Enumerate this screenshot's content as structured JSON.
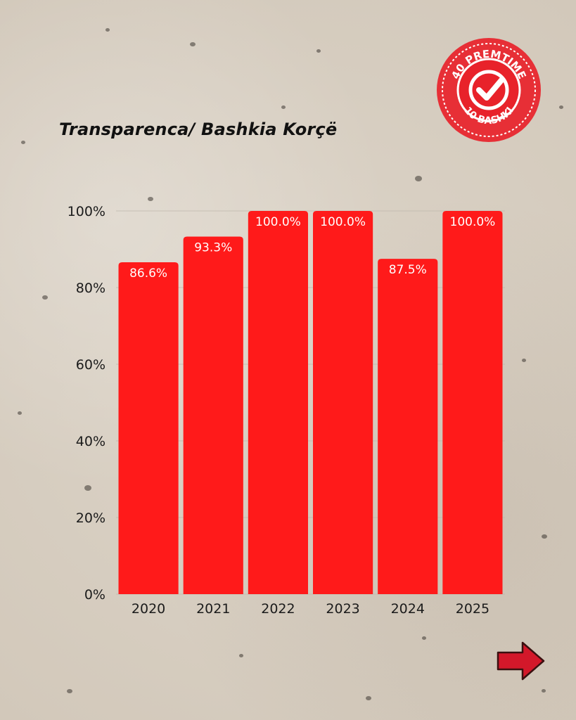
{
  "title": "Transparenca/ Bashkia Korçë",
  "logo": {
    "top_text": "40 PREMTIME",
    "bottom_text": "10 BASHKI",
    "icon": "checkmark-icon"
  },
  "navigation": {
    "next_icon": "arrow-right-icon"
  },
  "colors": {
    "bar": "#ff1a1a",
    "label": "#ffffff",
    "grid": "#bdb6ab",
    "arrow": "#d3182a"
  },
  "chart_data": {
    "type": "bar",
    "title": "Transparenca/ Bashkia Korçë",
    "categories": [
      "2020",
      "2021",
      "2022",
      "2023",
      "2024",
      "2025"
    ],
    "values": [
      86.6,
      93.3,
      100.0,
      100.0,
      87.5,
      100.0
    ],
    "data_labels": [
      "86.6%",
      "93.3%",
      "100.0%",
      "100.0%",
      "87.5%",
      "100.0%"
    ],
    "yticks": [
      "0%",
      "20%",
      "40%",
      "60%",
      "80%",
      "100%"
    ],
    "ylim": [
      0,
      100
    ],
    "xlabel": "",
    "ylabel": "",
    "grid": true,
    "legend": false
  }
}
